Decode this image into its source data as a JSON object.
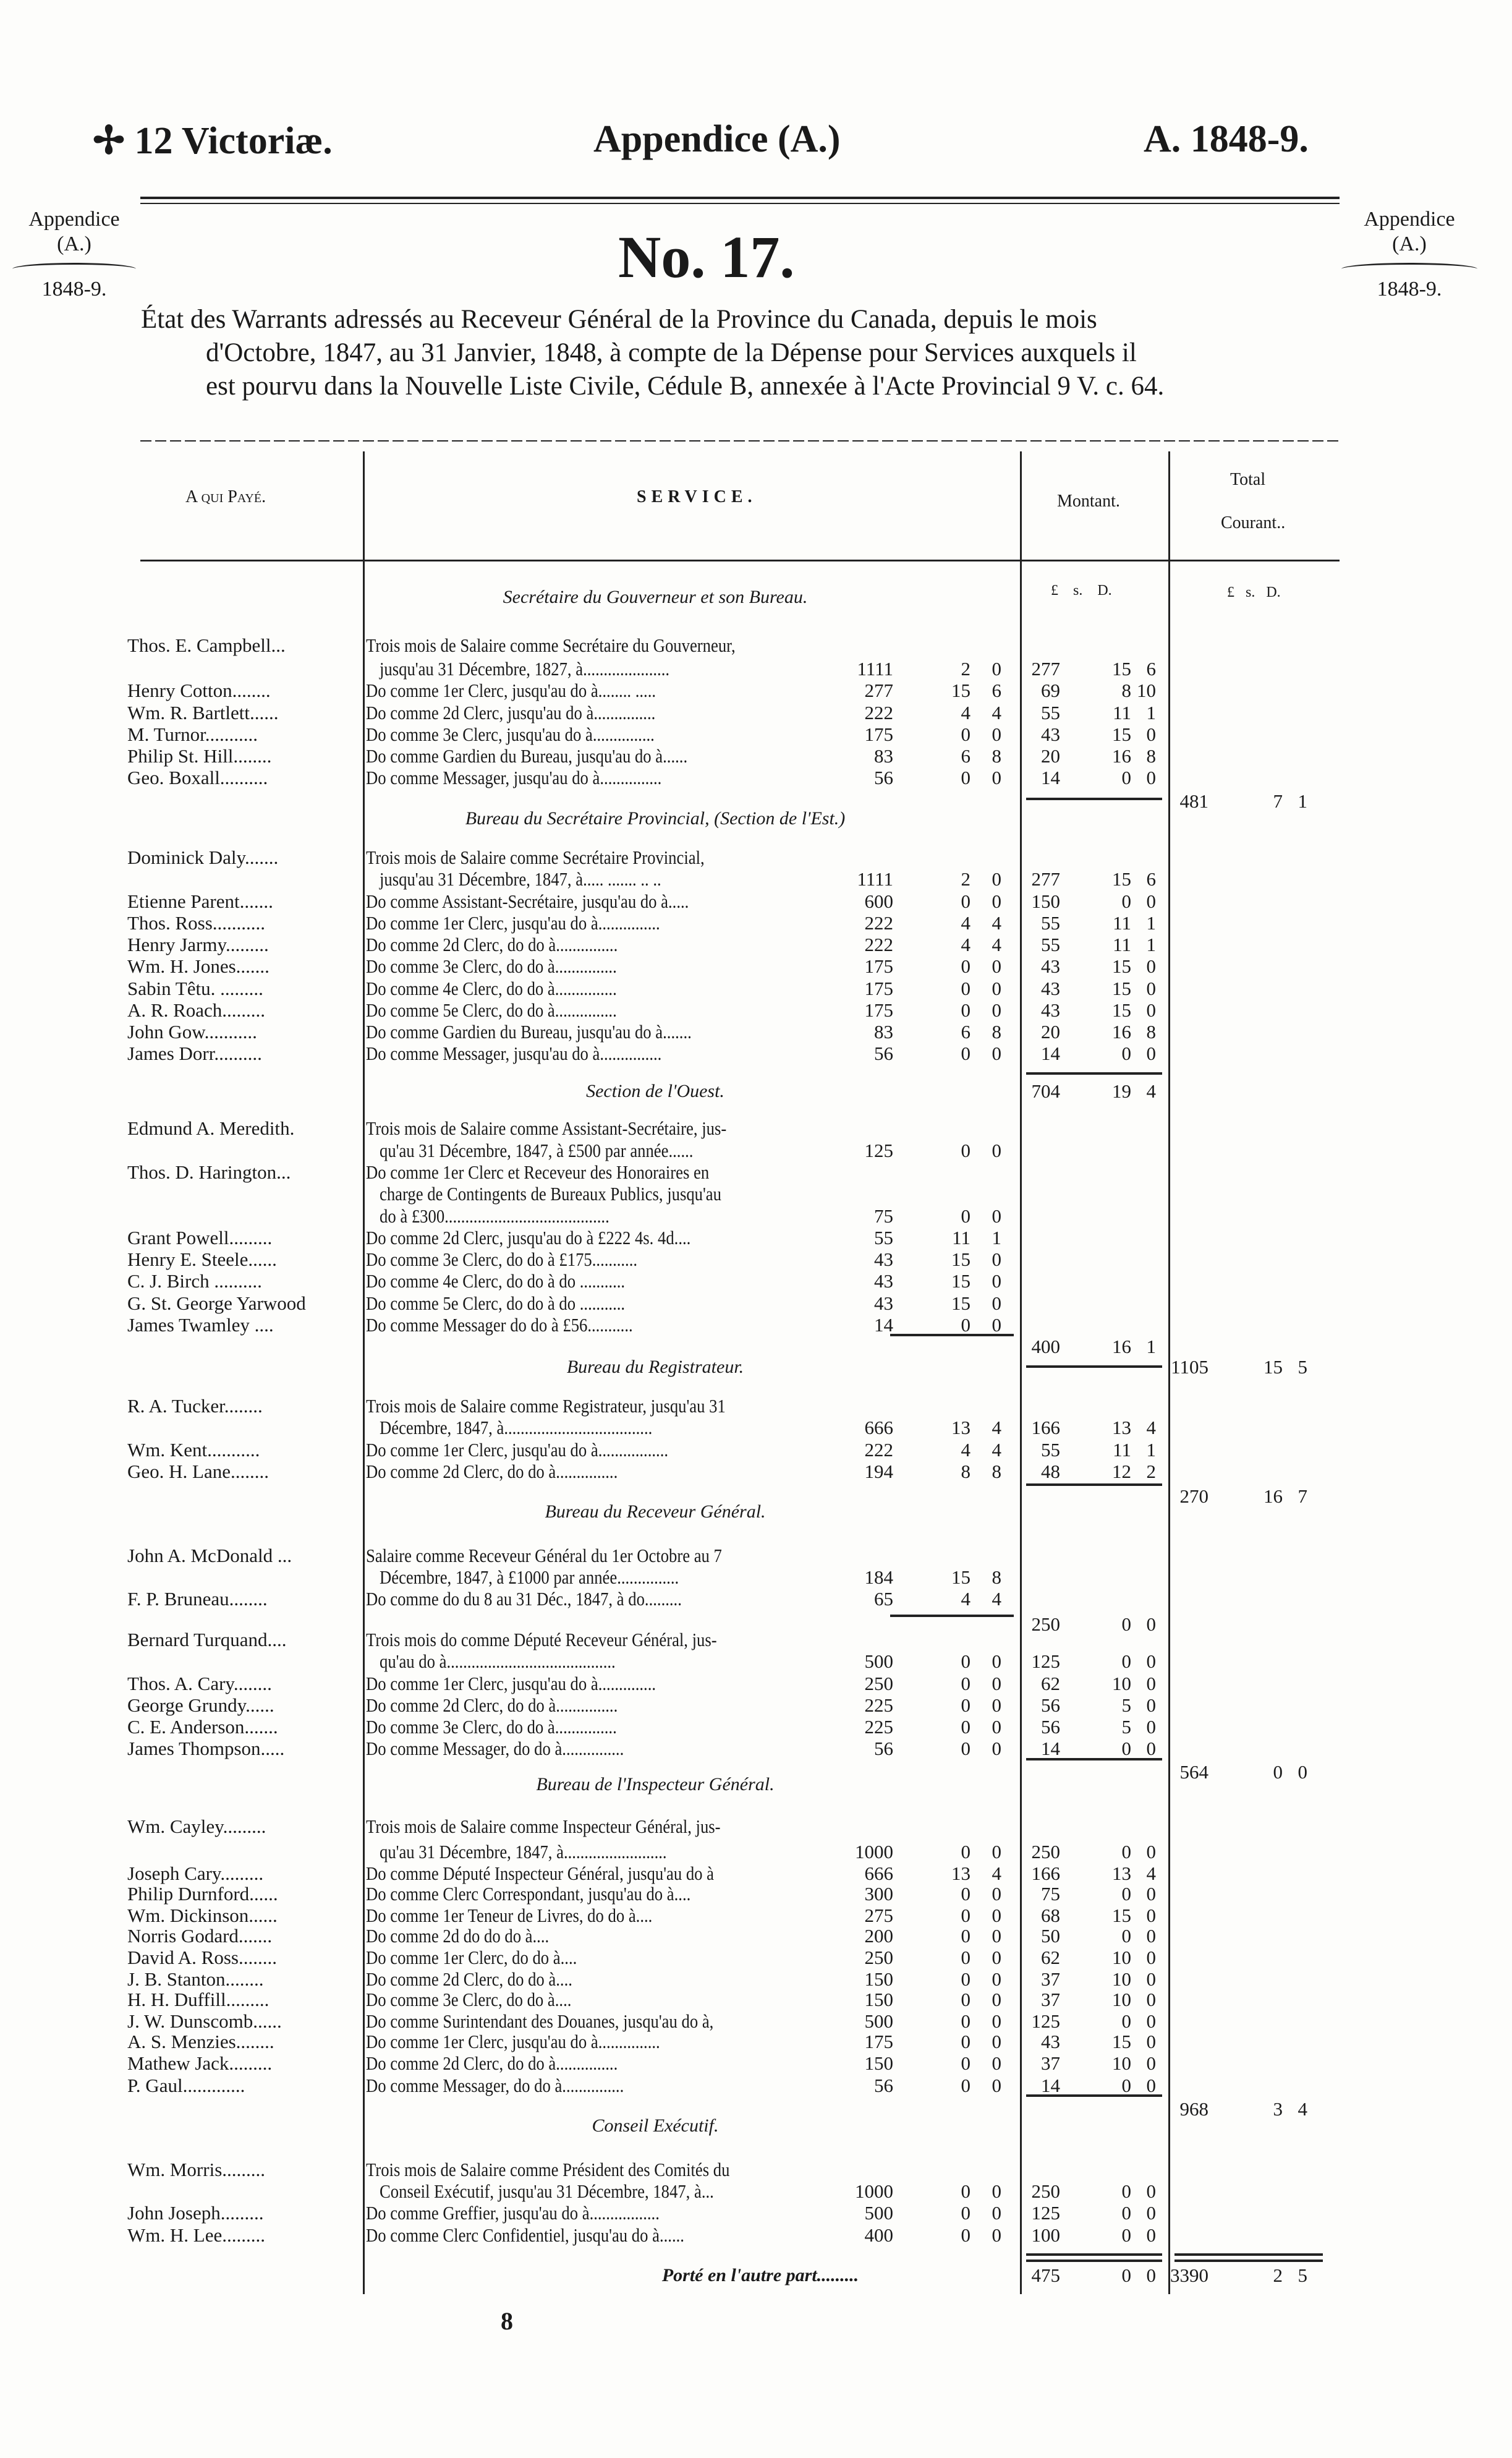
{
  "header": {
    "left": "✢ 12 Victoriæ.",
    "center": "Appendice (A.)",
    "right": "A. 1848-9."
  },
  "margin_note": {
    "line1": "Appendice",
    "line2": "(A.)",
    "line3": "1848-9."
  },
  "doc_number": "No. 17.",
  "title": {
    "line1": "État des Warrants adressés au Receveur Général de la Province du Canada, depuis le mois",
    "line2": "d'Octobre, 1847, au 31 Janvier, 1848, à compte de la Dépense pour Services auxquels il",
    "line3": "est pourvu dans la Nouvelle Liste Civile, Cédule B, annexée à l'Acte Provincial 9 V. c. 64."
  },
  "columns": {
    "payee": "A qui Payé.",
    "service": "SERVICE.",
    "amount": "Montant.",
    "total_line1": "Total",
    "total_line2": "Courant..",
    "units": [
      "£",
      "s.",
      "D."
    ]
  },
  "rows": [
    {
      "heading": "Secrétaire du Gouverneur et son Bureau."
    },
    {
      "units": [
        "£",
        "s.",
        "D."
      ]
    },
    {
      "name": "Thos. E. Campbell...",
      "text": "Trois mois de Salaire comme Secrétaire du Gouverneur,"
    },
    {
      "text": "jusqu'au 31 Décembre, 1827, à.....................",
      "indent": true,
      "amount": [
        "1111",
        "2",
        "0"
      ],
      "montant": [
        "277",
        "15",
        "6"
      ]
    },
    {
      "name": "Henry Cotton........",
      "text": "Do  comme 1er Clerc, jusqu'au do  à........ .....",
      "amount": [
        "277",
        "15",
        "6"
      ],
      "montant": [
        "69",
        "8",
        "10"
      ]
    },
    {
      "name": "Wm. R. Bartlett......",
      "text": "Do  comme 2d Clerc, jusqu'au do  à...............",
      "amount": [
        "222",
        "4",
        "4"
      ],
      "montant": [
        "55",
        "11",
        "1"
      ]
    },
    {
      "name": "M. Turnor...........",
      "text": "Do  comme 3e Clerc, jusqu'au do  à...............",
      "amount": [
        "175",
        "0",
        "0"
      ],
      "montant": [
        "43",
        "15",
        "0"
      ]
    },
    {
      "name": "Philip St. Hill........",
      "text": "Do  comme Gardien du Bureau, jusqu'au do à......",
      "amount": [
        "83",
        "6",
        "8"
      ],
      "montant": [
        "20",
        "16",
        "8"
      ]
    },
    {
      "name": "Geo. Boxall..........",
      "text": "Do  comme Messager, jusqu'au do à...............",
      "amount": [
        "56",
        "0",
        "0"
      ],
      "montant": [
        "14",
        "0",
        "0"
      ]
    },
    {
      "total": [
        "481",
        "7",
        "1"
      ]
    },
    {
      "heading": "Bureau du Secrétaire Provincial, (Section de l'Est.)"
    },
    {
      "name": "Dominick Daly.......",
      "text": "Trois mois de Salaire comme Secrétaire Provincial,"
    },
    {
      "text": "jusqu'au 31 Décembre, 1847, à..... ....... .. ..",
      "indent": true,
      "amount": [
        "1111",
        "2",
        "0"
      ],
      "montant": [
        "277",
        "15",
        "6"
      ]
    },
    {
      "name": "Etienne Parent.......",
      "text": "Do  comme Assistant-Secrétaire, jusqu'au do à.....",
      "amount": [
        "600",
        "0",
        "0"
      ],
      "montant": [
        "150",
        "0",
        "0"
      ]
    },
    {
      "name": "Thos. Ross...........",
      "text": "Do  comme 1er Clerc, jusqu'au do  à...............",
      "amount": [
        "222",
        "4",
        "4"
      ],
      "montant": [
        "55",
        "11",
        "1"
      ]
    },
    {
      "name": "Henry Jarmy.........",
      "text": "Do  comme 2d Clerc,     do     do à...............",
      "amount": [
        "222",
        "4",
        "4"
      ],
      "montant": [
        "55",
        "11",
        "1"
      ]
    },
    {
      "name": "Wm. H. Jones.......",
      "text": "Do  comme 3e Clerc,     do     do à...............",
      "amount": [
        "175",
        "0",
        "0"
      ],
      "montant": [
        "43",
        "15",
        "0"
      ]
    },
    {
      "name": "Sabin Têtu. .........",
      "text": "Do  comme 4e Clerc,     do     do à...............",
      "amount": [
        "175",
        "0",
        "0"
      ],
      "montant": [
        "43",
        "15",
        "0"
      ]
    },
    {
      "name": "A. R. Roach.........",
      "text": "Do  comme 5e Clerc,     do     do à...............",
      "amount": [
        "175",
        "0",
        "0"
      ],
      "montant": [
        "43",
        "15",
        "0"
      ]
    },
    {
      "name": "John Gow...........",
      "text": "Do  comme Gardien du Bureau, jusqu'au do à.......",
      "amount": [
        "83",
        "6",
        "8"
      ],
      "montant": [
        "20",
        "16",
        "8"
      ]
    },
    {
      "name": "James Dorr..........",
      "text": "Do  comme Messager, jusqu'au do à...............",
      "amount": [
        "56",
        "0",
        "0"
      ],
      "montant": [
        "14",
        "0",
        "0"
      ]
    },
    {
      "heading": "Section de l'Ouest.",
      "montant": [
        "704",
        "19",
        "4"
      ]
    },
    {
      "name": "Edmund A. Meredith.",
      "text": "Trois mois de Salaire comme Assistant-Secrétaire, jus-"
    },
    {
      "text": "qu'au 31 Décembre, 1847, à £500 par année......",
      "indent": true,
      "amount": [
        "125",
        "0",
        "0"
      ]
    },
    {
      "name": "Thos. D. Harington...",
      "text": "Do  comme 1er Clerc et Receveur des Honoraires en"
    },
    {
      "text": "charge de Contingents de Bureaux Publics, jusqu'au",
      "indent": true
    },
    {
      "text": "do à £300........................................",
      "indent": true,
      "amount": [
        "75",
        "0",
        "0"
      ]
    },
    {
      "name": "Grant Powell.........",
      "text": "Do  comme 2d Clerc, jusqu'au do à £222 4s. 4d....",
      "amount": [
        "55",
        "11",
        "1"
      ]
    },
    {
      "name": "Henry E. Steele......",
      "text": "Do  comme 3e Clerc,     do     do à £175...........",
      "amount": [
        "43",
        "15",
        "0"
      ]
    },
    {
      "name": "C. J. Birch ..........",
      "text": "Do  comme 4e Clerc,     do     do à  do  ...........",
      "amount": [
        "43",
        "15",
        "0"
      ]
    },
    {
      "name": "G. St. George Yarwood",
      "text": "Do  comme 5e Clerc,     do     do à  do  ...........",
      "amount": [
        "43",
        "15",
        "0"
      ]
    },
    {
      "name": "James Twamley ....",
      "text": "Do  comme Messager   do     do à £56...........",
      "amount": [
        "14",
        "0",
        "0"
      ]
    },
    {
      "montant": [
        "400",
        "16",
        "1"
      ]
    },
    {
      "heading": "Bureau du Registrateur.",
      "total": [
        "1105",
        "15",
        "5"
      ]
    },
    {
      "name": "R. A. Tucker........",
      "text": "Trois mois de Salaire comme Registrateur, jusqu'au 31"
    },
    {
      "text": "Décembre, 1847, à....................................",
      "indent": true,
      "amount": [
        "666",
        "13",
        "4"
      ],
      "montant": [
        "166",
        "13",
        "4"
      ]
    },
    {
      "name": "Wm. Kent...........",
      "text": "Do  comme 1er Clerc, jusqu'au do à.................",
      "amount": [
        "222",
        "4",
        "4"
      ],
      "montant": [
        "55",
        "11",
        "1"
      ]
    },
    {
      "name": "Geo. H. Lane........",
      "text": "Do  comme 2d Clerc,     do     do à...............",
      "amount": [
        "194",
        "8",
        "8"
      ],
      "montant": [
        "48",
        "12",
        "2"
      ]
    },
    {
      "total": [
        "270",
        "16",
        "7"
      ]
    },
    {
      "heading": "Bureau du Receveur Général."
    },
    {
      "name": "John A. McDonald ...",
      "text": "Salaire comme Receveur Général du 1er Octobre au 7"
    },
    {
      "text": "Décembre, 1847, à £1000 par année...............",
      "indent": true,
      "amount": [
        "184",
        "15",
        "8"
      ]
    },
    {
      "name": "F. P. Bruneau........",
      "text": "Do  comme do du 8 au 31 Déc., 1847, à do.........",
      "amount": [
        "65",
        "4",
        "4"
      ]
    },
    {
      "montant": [
        "250",
        "0",
        "0"
      ]
    },
    {
      "name": "Bernard Turquand....",
      "text": "Trois mois do comme Député Receveur Général, jus-"
    },
    {
      "text": "qu'au do à.........................................",
      "indent": true,
      "amount": [
        "500",
        "0",
        "0"
      ],
      "montant": [
        "125",
        "0",
        "0"
      ]
    },
    {
      "name": "Thos. A. Cary........",
      "text": "Do  comme 1er Clerc, jusqu'au do à..............",
      "amount": [
        "250",
        "0",
        "0"
      ],
      "montant": [
        "62",
        "10",
        "0"
      ]
    },
    {
      "name": "George Grundy......",
      "text": "Do  comme 2d Clerc,     do     do à...............",
      "amount": [
        "225",
        "0",
        "0"
      ],
      "montant": [
        "56",
        "5",
        "0"
      ]
    },
    {
      "name": "C. E. Anderson.......",
      "text": "Do  comme 3e Clerc,     do     do à...............",
      "amount": [
        "225",
        "0",
        "0"
      ],
      "montant": [
        "56",
        "5",
        "0"
      ]
    },
    {
      "name": "James Thompson.....",
      "text": "Do  comme Messager,     do     do à...............",
      "amount": [
        "56",
        "0",
        "0"
      ],
      "montant": [
        "14",
        "0",
        "0"
      ]
    },
    {
      "total": [
        "564",
        "0",
        "0"
      ]
    },
    {
      "heading": "Bureau de l'Inspecteur Général."
    },
    {
      "name": "Wm. Cayley.........",
      "text": "Trois mois de Salaire comme Inspecteur Général, jus-"
    },
    {
      "text": "qu'au 31 Décembre, 1847, à.........................",
      "indent": true,
      "amount": [
        "1000",
        "0",
        "0"
      ],
      "montant": [
        "250",
        "0",
        "0"
      ]
    },
    {
      "name": "Joseph Cary.........",
      "text": "Do  comme Député Inspecteur Général, jusqu'au do à",
      "amount": [
        "666",
        "13",
        "4"
      ],
      "montant": [
        "166",
        "13",
        "4"
      ]
    },
    {
      "name": "Philip Durnford......",
      "text": "Do  comme Clerc Correspondant, jusqu'au  do à....",
      "amount": [
        "300",
        "0",
        "0"
      ],
      "montant": [
        "75",
        "0",
        "0"
      ]
    },
    {
      "name": "Wm. Dickinson......",
      "text": "Do  comme 1er Teneur de Livres,    do     do à....",
      "amount": [
        "275",
        "0",
        "0"
      ],
      "montant": [
        "68",
        "15",
        "0"
      ]
    },
    {
      "name": "Norris Godard.......",
      "text": "Do  comme 2d          do            do     do à....",
      "amount": [
        "200",
        "0",
        "0"
      ],
      "montant": [
        "50",
        "0",
        "0"
      ]
    },
    {
      "name": "David A. Ross........",
      "text": "Do  comme 1er Clerc,                do     do à....",
      "amount": [
        "250",
        "0",
        "0"
      ],
      "montant": [
        "62",
        "10",
        "0"
      ]
    },
    {
      "name": "J. B. Stanton........",
      "text": "Do  comme 2d Clerc,                 do     do à....",
      "amount": [
        "150",
        "0",
        "0"
      ],
      "montant": [
        "37",
        "10",
        "0"
      ]
    },
    {
      "name": "H. H. Duffill.........",
      "text": "Do  comme 3e Clerc,                 do     do à....",
      "amount": [
        "150",
        "0",
        "0"
      ],
      "montant": [
        "37",
        "10",
        "0"
      ]
    },
    {
      "name": "J. W. Dunscomb......",
      "text": "Do  comme Surintendant des Douanes, jusqu'au do à,",
      "amount": [
        "500",
        "0",
        "0"
      ],
      "montant": [
        "125",
        "0",
        "0"
      ]
    },
    {
      "name": "A. S. Menzies........",
      "text": "Do  comme 1er Clerc, jusqu'au do à...............",
      "amount": [
        "175",
        "0",
        "0"
      ],
      "montant": [
        "43",
        "15",
        "0"
      ]
    },
    {
      "name": "Mathew Jack.........",
      "text": "Do  comme 2d Clerc,     do     do à...............",
      "amount": [
        "150",
        "0",
        "0"
      ],
      "montant": [
        "37",
        "10",
        "0"
      ]
    },
    {
      "name": "P. Gaul.............",
      "text": "Do  comme Messager,    do     do à...............",
      "amount": [
        "56",
        "0",
        "0"
      ],
      "montant": [
        "14",
        "0",
        "0"
      ]
    },
    {
      "total": [
        "968",
        "3",
        "4"
      ]
    },
    {
      "heading": "Conseil Exécutif."
    },
    {
      "name": "Wm. Morris.........",
      "text": "Trois mois de Salaire comme Président des Comités du"
    },
    {
      "text": "Conseil Exécutif, jusqu'au 31 Décembre, 1847, à...",
      "indent": true,
      "amount": [
        "1000",
        "0",
        "0"
      ],
      "montant": [
        "250",
        "0",
        "0"
      ]
    },
    {
      "name": "John Joseph.........",
      "text": "Do  comme Greffier, jusqu'au do à.................",
      "amount": [
        "500",
        "0",
        "0"
      ],
      "montant": [
        "125",
        "0",
        "0"
      ]
    },
    {
      "name": "Wm. H. Lee.........",
      "text": "Do  comme Clerc Confidentiel, jusqu'au do à......",
      "amount": [
        "400",
        "0",
        "0"
      ],
      "montant": [
        "100",
        "0",
        "0"
      ]
    },
    {
      "carried": "Porté en l'autre part.........",
      "montant": [
        "475",
        "0",
        "0"
      ],
      "total": [
        "3390",
        "2",
        "5"
      ]
    }
  ],
  "page_number": "8"
}
